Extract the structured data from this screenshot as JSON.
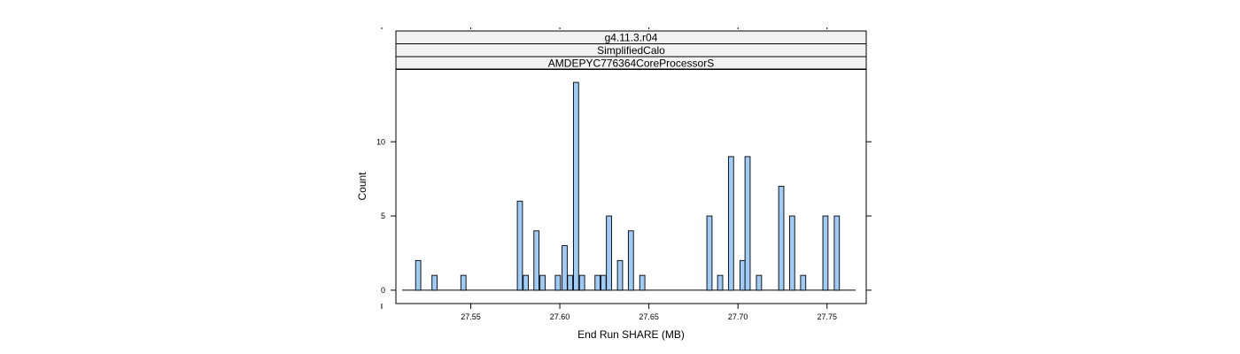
{
  "chart_data": {
    "type": "bar",
    "strips": [
      "g4.11.3.r04",
      "SimplifiedCalo",
      "AMDEPYC776364CoreProcessorS"
    ],
    "xlabel": "End Run SHARE (MB)",
    "ylabel": "Count",
    "xlim": [
      27.508,
      27.772
    ],
    "ylim": [
      -0.9,
      14.9
    ],
    "x_ticks": [
      27.55,
      27.6,
      27.65,
      27.7,
      27.75
    ],
    "x_tick_labels": [
      "27.55",
      "27.60",
      "27.65",
      "27.70",
      "27.75"
    ],
    "y_ticks": [
      0,
      5,
      10
    ],
    "y_tick_labels": [
      "0",
      "5",
      "10"
    ],
    "baseline_range": [
      27.5115,
      27.766
    ],
    "bin_width": 0.0029,
    "bars": [
      {
        "x": 27.5205,
        "count": 2
      },
      {
        "x": 27.5297,
        "count": 1
      },
      {
        "x": 27.5459,
        "count": 1
      },
      {
        "x": 27.5776,
        "count": 6
      },
      {
        "x": 27.5809,
        "count": 1
      },
      {
        "x": 27.5869,
        "count": 4
      },
      {
        "x": 27.5903,
        "count": 1
      },
      {
        "x": 27.5989,
        "count": 1
      },
      {
        "x": 27.6027,
        "count": 3
      },
      {
        "x": 27.6058,
        "count": 1
      },
      {
        "x": 27.6091,
        "count": 14
      },
      {
        "x": 27.6125,
        "count": 1
      },
      {
        "x": 27.6212,
        "count": 1
      },
      {
        "x": 27.6245,
        "count": 1
      },
      {
        "x": 27.6276,
        "count": 5
      },
      {
        "x": 27.6338,
        "count": 2
      },
      {
        "x": 27.6399,
        "count": 4
      },
      {
        "x": 27.6463,
        "count": 1
      },
      {
        "x": 27.684,
        "count": 5
      },
      {
        "x": 27.69,
        "count": 1
      },
      {
        "x": 27.6961,
        "count": 9
      },
      {
        "x": 27.7026,
        "count": 2
      },
      {
        "x": 27.7054,
        "count": 9
      },
      {
        "x": 27.7118,
        "count": 1
      },
      {
        "x": 27.7243,
        "count": 7
      },
      {
        "x": 27.7304,
        "count": 5
      },
      {
        "x": 27.7366,
        "count": 1
      },
      {
        "x": 27.7491,
        "count": 5
      },
      {
        "x": 27.7555,
        "count": 5
      }
    ]
  },
  "colors": {
    "bar_fill": "#9fcbf7",
    "bar_stroke": "#000000",
    "strip_fill": "#f2f2f2",
    "frame": "#000000"
  }
}
